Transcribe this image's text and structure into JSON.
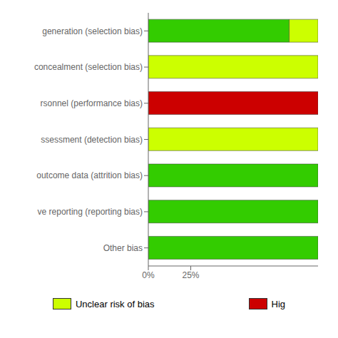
{
  "chart_data": {
    "type": "bar",
    "orientation": "horizontal",
    "stacked": true,
    "categories": [
      "generation (selection bias)",
      "concealment (selection bias)",
      "rsonnel (performance bias)",
      "ssessment (detection bias)",
      "outcome data (attrition bias)",
      "ve reporting (reporting bias)",
      "Other bias"
    ],
    "series": [
      {
        "color": "#33cc00",
        "values": [
          83,
          0,
          0,
          0,
          100,
          100,
          100
        ]
      },
      {
        "name": "Unclear risk of bias",
        "color": "#ccff00",
        "values": [
          17,
          100,
          0,
          100,
          0,
          0,
          0
        ]
      },
      {
        "name": "Hig",
        "color": "#cc0000",
        "values": [
          0,
          0,
          100,
          0,
          0,
          0,
          0
        ]
      }
    ],
    "xlim": [
      0,
      100
    ],
    "xticks": [
      {
        "value": 0,
        "label": "0%"
      },
      {
        "value": 25,
        "label": "25%"
      }
    ],
    "grid": false,
    "legend": "bottom"
  }
}
